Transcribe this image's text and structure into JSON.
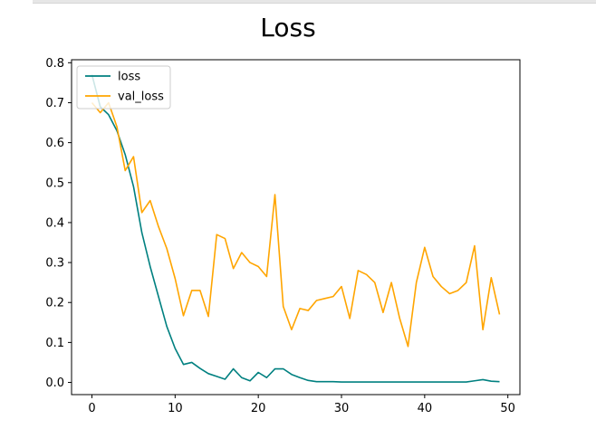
{
  "chart_data": {
    "type": "line",
    "title": "Loss",
    "xlabel": "",
    "ylabel": "",
    "xlim": [
      -2.45,
      51.45
    ],
    "ylim": [
      -0.0305,
      0.8075
    ],
    "xticks": [
      0,
      10,
      20,
      30,
      40,
      50
    ],
    "yticks": [
      0.0,
      0.1,
      0.2,
      0.3,
      0.4,
      0.5,
      0.6,
      0.7,
      0.8
    ],
    "ytick_labels": [
      "0.0",
      "0.1",
      "0.2",
      "0.3",
      "0.4",
      "0.5",
      "0.6",
      "0.7",
      "0.8"
    ],
    "grid": false,
    "legend_position": "upper left",
    "x": [
      0,
      1,
      2,
      3,
      4,
      5,
      6,
      7,
      8,
      9,
      10,
      11,
      12,
      13,
      14,
      15,
      16,
      17,
      18,
      19,
      20,
      21,
      22,
      23,
      24,
      25,
      26,
      27,
      28,
      29,
      30,
      31,
      32,
      33,
      34,
      35,
      36,
      37,
      38,
      39,
      40,
      41,
      42,
      43,
      44,
      45,
      46,
      47,
      48,
      49
    ],
    "series": [
      {
        "name": "loss",
        "color": "#008080",
        "values": [
          0.77,
          0.69,
          0.67,
          0.63,
          0.57,
          0.49,
          0.375,
          0.29,
          0.215,
          0.14,
          0.085,
          0.045,
          0.05,
          0.035,
          0.022,
          0.015,
          0.008,
          0.034,
          0.012,
          0.004,
          0.025,
          0.012,
          0.034,
          0.034,
          0.02,
          0.012,
          0.005,
          0.002,
          0.002,
          0.002,
          0.001,
          0.001,
          0.001,
          0.001,
          0.001,
          0.001,
          0.001,
          0.001,
          0.001,
          0.001,
          0.001,
          0.001,
          0.001,
          0.001,
          0.001,
          0.001,
          0.004,
          0.007,
          0.003,
          0.002
        ]
      },
      {
        "name": "val_loss",
        "color": "#FFA500",
        "values": [
          0.7,
          0.675,
          0.7,
          0.64,
          0.53,
          0.565,
          0.425,
          0.455,
          0.39,
          0.335,
          0.26,
          0.167,
          0.23,
          0.23,
          0.165,
          0.37,
          0.36,
          0.285,
          0.325,
          0.3,
          0.29,
          0.265,
          0.47,
          0.19,
          0.132,
          0.185,
          0.18,
          0.205,
          0.21,
          0.215,
          0.24,
          0.16,
          0.28,
          0.27,
          0.25,
          0.175,
          0.25,
          0.16,
          0.09,
          0.25,
          0.338,
          0.265,
          0.24,
          0.222,
          0.23,
          0.25,
          0.342,
          0.132,
          0.262,
          0.17
        ]
      }
    ]
  }
}
